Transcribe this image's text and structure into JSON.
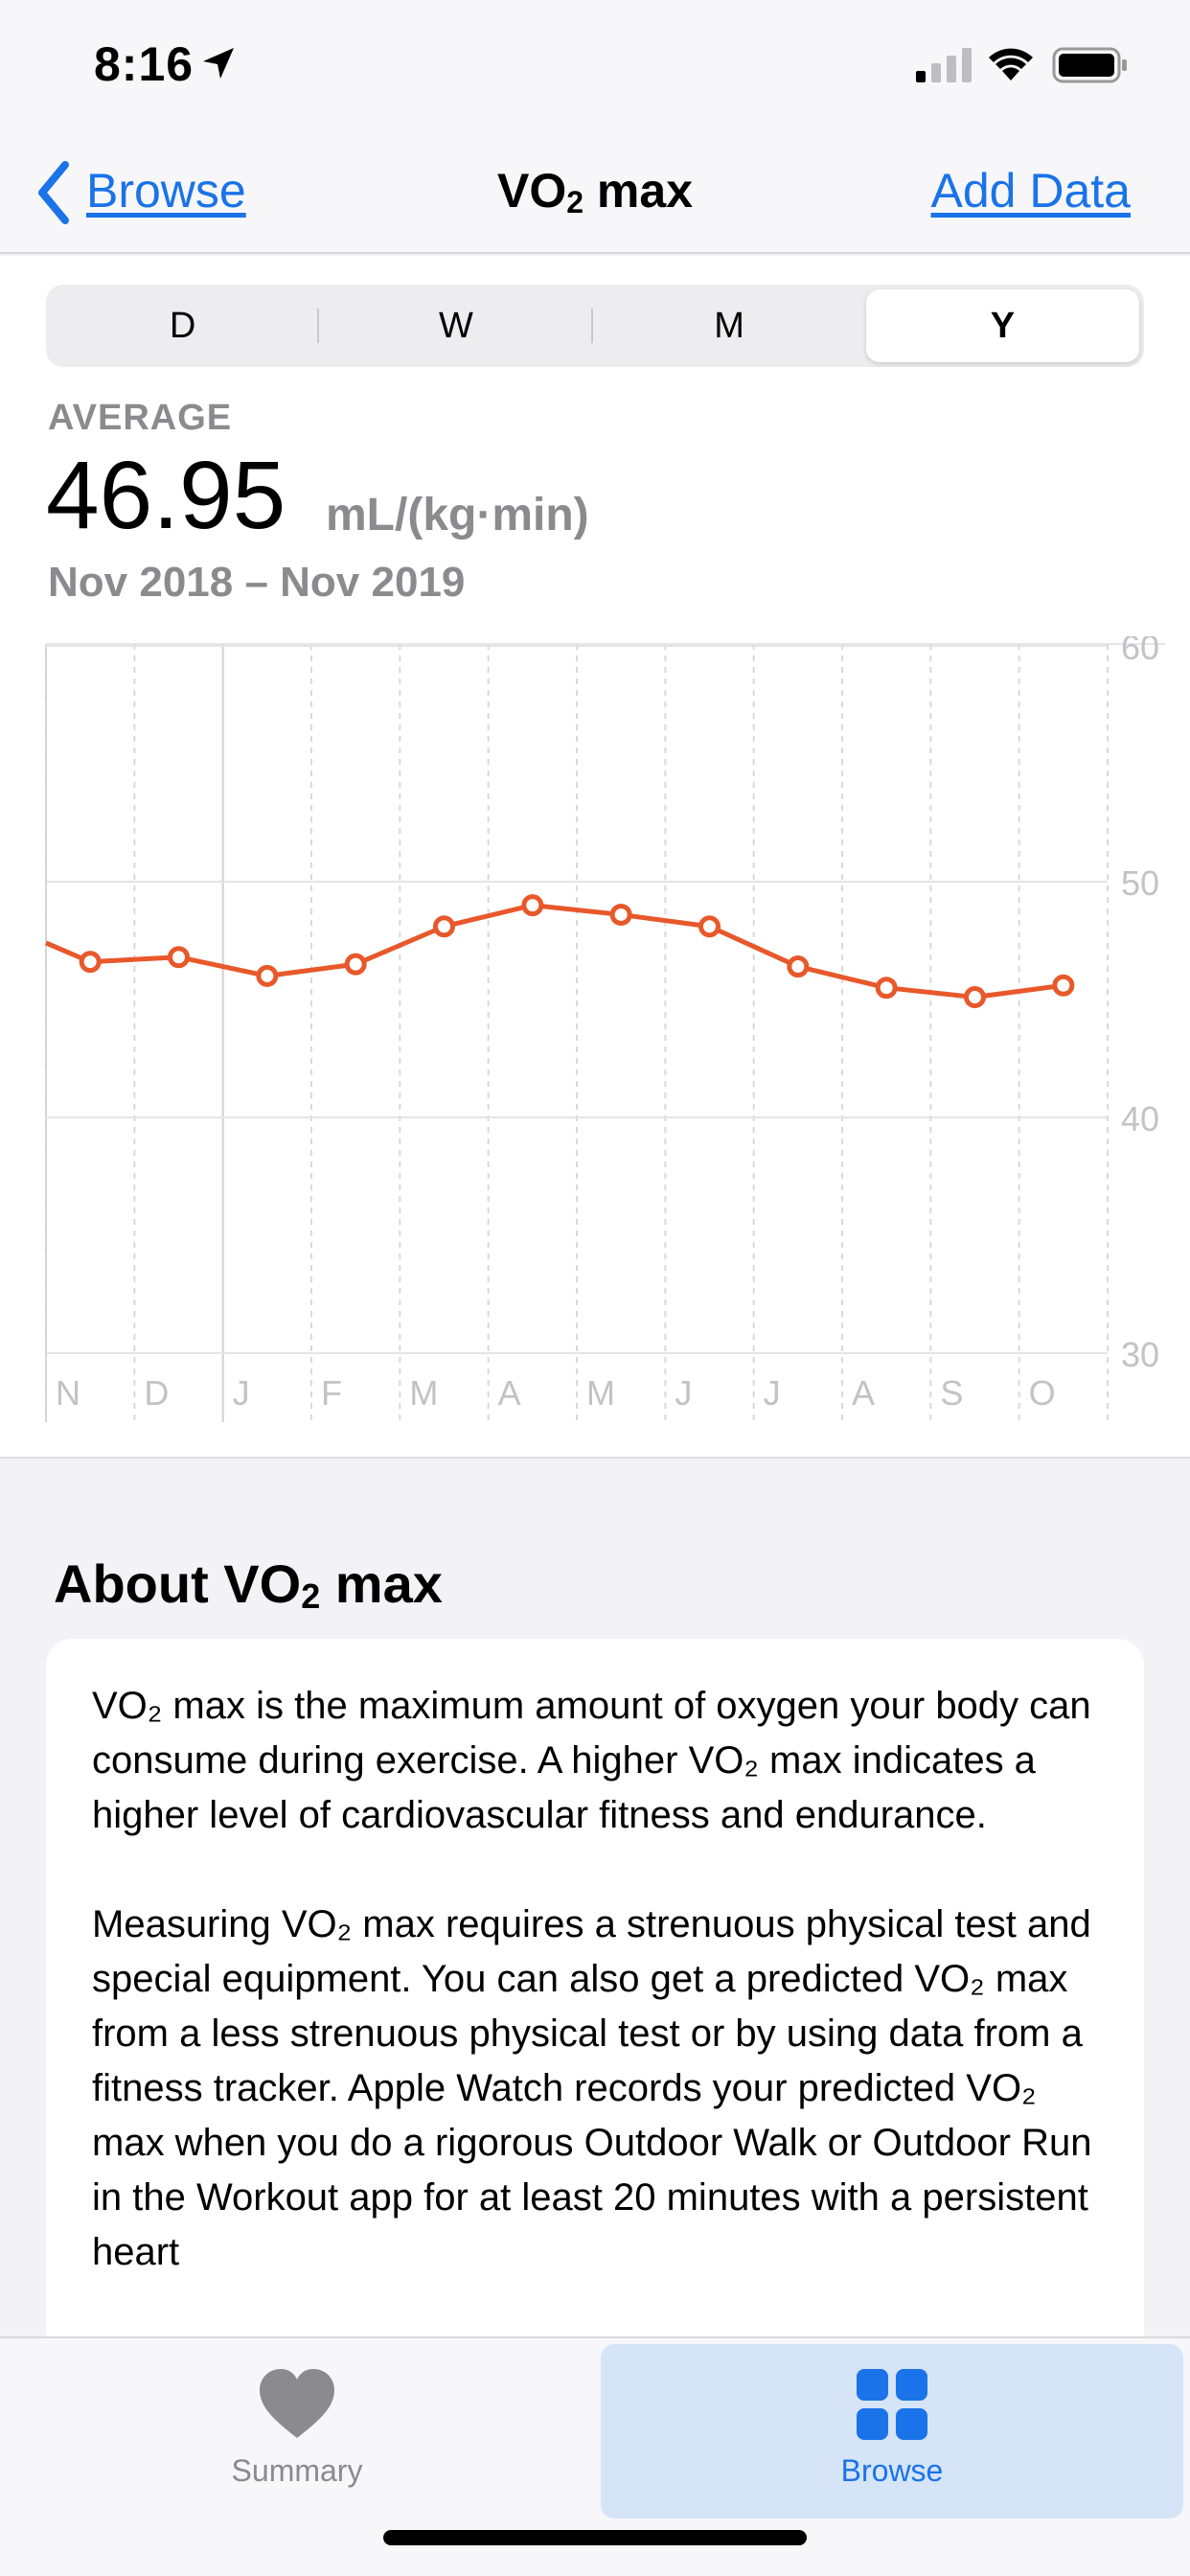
{
  "status_bar": {
    "time": "8:16"
  },
  "nav": {
    "back_label": "Browse",
    "title": "VO",
    "title_sub": "2",
    "title_rest": " max",
    "action_label": "Add Data"
  },
  "segments": [
    "D",
    "W",
    "M",
    "Y"
  ],
  "selected_segment": "Y",
  "summary": {
    "label": "AVERAGE",
    "value": "46.95",
    "unit": "mL/(kg·min)",
    "range": "Nov 2018 – Nov 2019"
  },
  "chart_data": {
    "type": "line",
    "x": [
      "N",
      "D",
      "J",
      "F",
      "M",
      "A",
      "M",
      "J",
      "J",
      "A",
      "S",
      "O"
    ],
    "series": [
      {
        "values": [
          46.6,
          46.8,
          46.0,
          46.5,
          48.1,
          49.0,
          48.6,
          48.1,
          46.4,
          45.5,
          45.1,
          45.6
        ]
      }
    ],
    "start_value": 47.4,
    "ylim": [
      30,
      60
    ],
    "yticks": [
      "60",
      "50",
      "40",
      "30"
    ],
    "line_color": "#e8582a",
    "grid": true
  },
  "about": {
    "heading": "About VO",
    "heading_sub": "2",
    "heading_rest": " max",
    "paragraphs": [
      "VO₂ max is the maximum amount of oxygen your body can consume during exercise. A higher VO₂ max indicates a higher level of cardiovascular fitness and endurance.",
      "Measuring VO₂ max requires a strenuous physical test and special equipment. You can also get a predicted VO₂ max from a less strenuous physical test or by using data from a fitness tracker. Apple Watch records your predicted VO₂ max when you do a rigorous Outdoor Walk or Outdoor Run in the Workout app for at least 20 minutes with a persistent heart"
    ]
  },
  "tab_bar": {
    "tabs": [
      {
        "label": "Summary",
        "icon": "heart-icon",
        "selected": false
      },
      {
        "label": "Browse",
        "icon": "grid-icon",
        "selected": true
      }
    ]
  },
  "colors": {
    "accent": "#1a73e8",
    "chart_line": "#e8582a"
  }
}
